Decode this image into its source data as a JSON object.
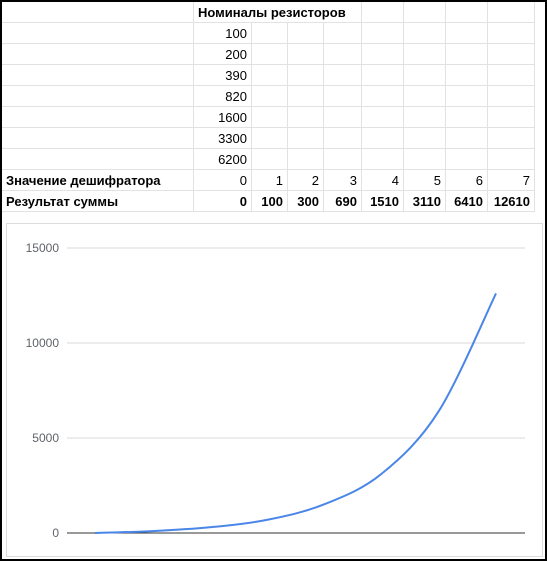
{
  "spreadsheet": {
    "header_title": "Номиналы резисторов",
    "resistor_values": [
      "100",
      "200",
      "390",
      "820",
      "1600",
      "3300",
      "6200"
    ],
    "decoder_row": {
      "label": "Значение дешифратора",
      "values": [
        "0",
        "1",
        "2",
        "3",
        "4",
        "5",
        "6",
        "7"
      ]
    },
    "sum_row": {
      "label": "Результат суммы",
      "values": [
        "0",
        "100",
        "300",
        "690",
        "1510",
        "3110",
        "6410",
        "12610"
      ]
    }
  },
  "chart_data": {
    "type": "line",
    "title": "",
    "xlabel": "",
    "ylabel": "",
    "x": [
      0,
      1,
      2,
      3,
      4,
      5,
      6,
      7
    ],
    "series": [
      {
        "values": [
          0,
          100,
          300,
          690,
          1510,
          3110,
          6410,
          12610
        ],
        "color": "#4a86e8"
      }
    ],
    "ylim": [
      0,
      15000
    ],
    "yticks": [
      "0",
      "5000",
      "10000",
      "15000"
    ],
    "grid": true
  }
}
